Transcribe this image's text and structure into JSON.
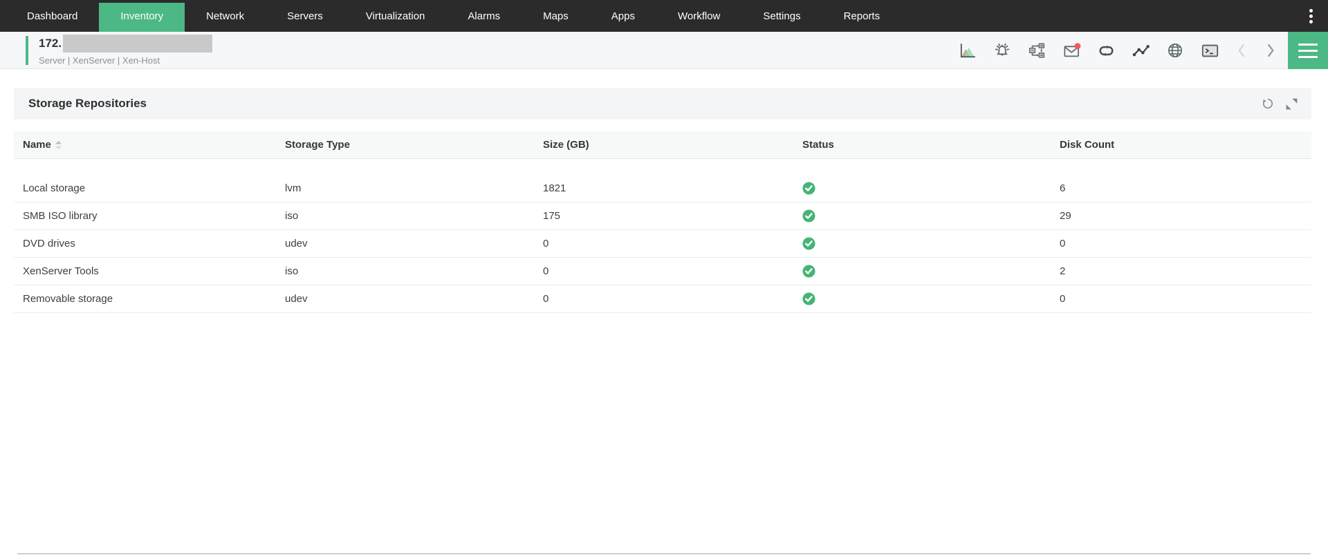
{
  "colors": {
    "nav_bg": "#2b2b2b",
    "accent_green": "#4cb885",
    "status_ok_green": "#45b574",
    "notification_red": "#f05c5c"
  },
  "nav": {
    "items": [
      {
        "label": "Dashboard",
        "active": false
      },
      {
        "label": "Inventory",
        "active": true
      },
      {
        "label": "Network",
        "active": false
      },
      {
        "label": "Servers",
        "active": false
      },
      {
        "label": "Virtualization",
        "active": false
      },
      {
        "label": "Alarms",
        "active": false
      },
      {
        "label": "Maps",
        "active": false
      },
      {
        "label": "Apps",
        "active": false
      },
      {
        "label": "Workflow",
        "active": false
      },
      {
        "label": "Settings",
        "active": false
      },
      {
        "label": "Reports",
        "active": false
      }
    ]
  },
  "device_header": {
    "title_prefix": "172.",
    "title_masked": true,
    "subtitle": "Server | XenServer | Xen-Host",
    "toolbar_icons": [
      "performance-chart",
      "alarm-bell",
      "workflow",
      "mail-notification",
      "link-loop",
      "line-graph",
      "globe",
      "terminal",
      "chevron-left",
      "chevron-right",
      "menu-hamburger"
    ]
  },
  "panel": {
    "title": "Storage Repositories",
    "action_icons": [
      "refresh",
      "expand"
    ],
    "table": {
      "columns": [
        "Name",
        "Storage Type",
        "Size (GB)",
        "Status",
        "Disk Count"
      ],
      "sorted_by": "Name",
      "sort_direction": "asc",
      "rows": [
        {
          "name": "Local storage",
          "storage_type": "lvm",
          "size_gb": "1821",
          "status": "ok",
          "disk_count": "6"
        },
        {
          "name": "SMB ISO library",
          "storage_type": "iso",
          "size_gb": "175",
          "status": "ok",
          "disk_count": "29"
        },
        {
          "name": "DVD drives",
          "storage_type": "udev",
          "size_gb": "0",
          "status": "ok",
          "disk_count": "0"
        },
        {
          "name": "XenServer Tools",
          "storage_type": "iso",
          "size_gb": "0",
          "status": "ok",
          "disk_count": "2"
        },
        {
          "name": "Removable storage",
          "storage_type": "udev",
          "size_gb": "0",
          "status": "ok",
          "disk_count": "0"
        }
      ]
    }
  }
}
